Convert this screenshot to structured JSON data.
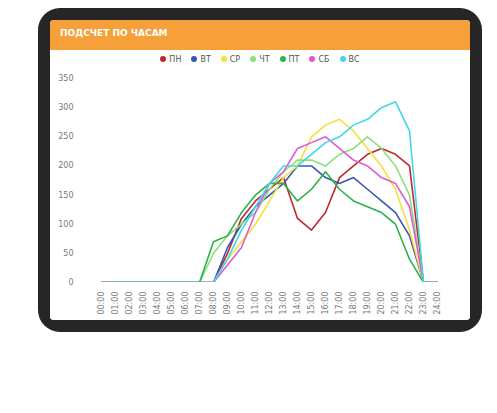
{
  "chart_data": {
    "type": "line",
    "title": "ПОДСЧЕТ ПО ЧАСАМ",
    "x": [
      "00:00",
      "01:00",
      "02:00",
      "03:00",
      "04:00",
      "05:00",
      "06:00",
      "07:00",
      "08:00",
      "09:00",
      "10:00",
      "11:00",
      "12:00",
      "13:00",
      "14:00",
      "15:00",
      "16:00",
      "17:00",
      "18:00",
      "19:00",
      "20:00",
      "21:00",
      "22:00",
      "23:00",
      "24:00"
    ],
    "series": [
      {
        "name": "ПН",
        "color": "#c0282d",
        "values": [
          0,
          0,
          0,
          0,
          0,
          0,
          0,
          0,
          0,
          50,
          110,
          140,
          160,
          180,
          110,
          90,
          120,
          180,
          200,
          220,
          230,
          220,
          200,
          0,
          0
        ]
      },
      {
        "name": "ВТ",
        "color": "#3a55b4",
        "values": [
          0,
          0,
          0,
          0,
          0,
          0,
          0,
          0,
          0,
          60,
          100,
          130,
          150,
          170,
          200,
          200,
          180,
          170,
          180,
          160,
          140,
          120,
          80,
          0,
          0
        ]
      },
      {
        "name": "СР",
        "color": "#f2e23a",
        "values": [
          0,
          0,
          0,
          0,
          0,
          0,
          0,
          0,
          0,
          40,
          70,
          100,
          140,
          180,
          200,
          250,
          270,
          280,
          260,
          230,
          200,
          160,
          90,
          0,
          0
        ]
      },
      {
        "name": "ЧТ",
        "color": "#8ee07a",
        "values": [
          0,
          0,
          0,
          0,
          0,
          0,
          0,
          0,
          50,
          80,
          100,
          120,
          160,
          190,
          210,
          210,
          200,
          220,
          230,
          250,
          230,
          200,
          150,
          0,
          0
        ]
      },
      {
        "name": "ПТ",
        "color": "#2bb24c",
        "values": [
          0,
          0,
          0,
          0,
          0,
          0,
          0,
          0,
          70,
          80,
          120,
          150,
          170,
          170,
          140,
          160,
          190,
          160,
          140,
          130,
          120,
          100,
          40,
          0,
          0
        ]
      },
      {
        "name": "СБ",
        "color": "#e05ad6",
        "values": [
          0,
          0,
          0,
          0,
          0,
          0,
          0,
          0,
          0,
          30,
          60,
          120,
          170,
          190,
          230,
          240,
          250,
          230,
          210,
          200,
          180,
          170,
          130,
          0,
          0
        ]
      },
      {
        "name": "ВС",
        "color": "#3fd8e8",
        "values": [
          0,
          0,
          0,
          0,
          0,
          0,
          0,
          0,
          0,
          40,
          90,
          130,
          170,
          200,
          200,
          220,
          240,
          250,
          270,
          280,
          300,
          310,
          260,
          0,
          0
        ]
      }
    ],
    "ylim": [
      0,
      350
    ],
    "yticks": [
      0,
      50,
      100,
      150,
      200,
      250,
      300,
      350
    ],
    "grid": false,
    "legend": "top"
  }
}
